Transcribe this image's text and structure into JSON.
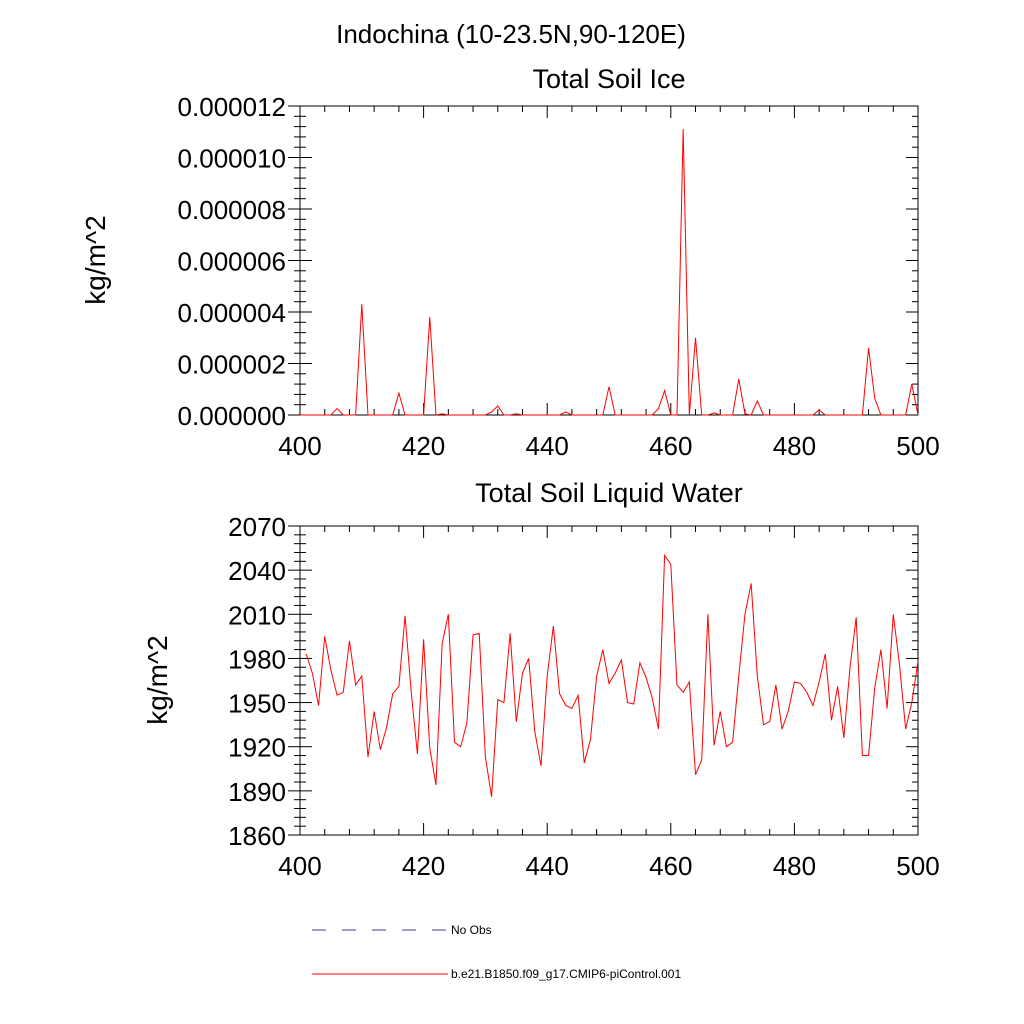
{
  "suptitle": "Indochina (10-23.5N,90-120E)",
  "colors": {
    "model": "#ff0000",
    "obs": "#3a3aa0",
    "axis": "#000000"
  },
  "legend": {
    "obs_label": "No Obs",
    "model_label": "b.e21.B1850.f09_g17.CMIP6-piControl.001"
  },
  "chart_data": [
    {
      "type": "line",
      "title": "Total Soil Ice",
      "xlabel": "",
      "ylabel": "kg/m^2",
      "xlim": [
        400,
        500
      ],
      "ylim": [
        0,
        1.2e-05
      ],
      "xticks": [
        "400",
        "420",
        "440",
        "460",
        "480",
        "500"
      ],
      "yticks": [
        "0.000000",
        "0.000002",
        "0.000004",
        "0.000006",
        "0.000008",
        "0.000010",
        "0.000012"
      ],
      "series": [
        {
          "name": "b.e21.B1850.f09_g17.CMIP6-piControl.001",
          "x": [
            400,
            401,
            402,
            403,
            404,
            405,
            406,
            407,
            408,
            409,
            410,
            411,
            412,
            413,
            414,
            415,
            416,
            417,
            418,
            419,
            420,
            421,
            422,
            423,
            424,
            425,
            426,
            427,
            428,
            429,
            430,
            431,
            432,
            433,
            434,
            435,
            436,
            437,
            438,
            439,
            440,
            441,
            442,
            443,
            444,
            445,
            446,
            447,
            448,
            449,
            450,
            451,
            452,
            453,
            454,
            455,
            456,
            457,
            458,
            459,
            460,
            461,
            462,
            463,
            464,
            465,
            466,
            467,
            468,
            469,
            470,
            471,
            472,
            473,
            474,
            475,
            476,
            477,
            478,
            479,
            480,
            481,
            482,
            483,
            484,
            485,
            486,
            487,
            488,
            489,
            490,
            491,
            492,
            493,
            494,
            495,
            496,
            497,
            498,
            499,
            500
          ],
          "values": [
            0,
            0,
            0,
            0,
            0,
            0,
            2.5e-07,
            0,
            0,
            0,
            4.3e-06,
            0,
            0,
            0,
            0,
            0,
            8.5e-07,
            0,
            0,
            0,
            0,
            3.8e-06,
            0,
            5e-08,
            0,
            0,
            0,
            0,
            0,
            0,
            0,
            1.2e-07,
            3.5e-07,
            0,
            0,
            5e-08,
            0,
            0,
            0,
            0,
            0,
            0,
            0,
            1.2e-07,
            0,
            0,
            0,
            0,
            0,
            0,
            1.1e-06,
            0,
            0,
            0,
            0,
            0,
            0,
            0,
            2.5e-07,
            9.5e-07,
            0,
            0,
            1.11e-05,
            0,
            3e-06,
            0,
            0,
            8e-08,
            0,
            0,
            0,
            1.4e-06,
            5e-08,
            0,
            5.5e-07,
            0,
            0,
            0,
            0,
            0,
            0,
            0,
            0,
            0,
            2e-07,
            0,
            0,
            0,
            0,
            0,
            0,
            0,
            2.6e-06,
            6.5e-07,
            0,
            0,
            0,
            0,
            0,
            1.2e-06,
            0
          ]
        }
      ]
    },
    {
      "type": "line",
      "title": "Total Soil Liquid Water",
      "xlabel": "",
      "ylabel": "kg/m^2",
      "xlim": [
        400,
        500
      ],
      "ylim": [
        1860,
        2070
      ],
      "xticks": [
        "400",
        "420",
        "440",
        "460",
        "480",
        "500"
      ],
      "yticks": [
        "1860",
        "1890",
        "1920",
        "1950",
        "1980",
        "2010",
        "2040",
        "2070"
      ],
      "series": [
        {
          "name": "b.e21.B1850.f09_g17.CMIP6-piControl.001",
          "x": [
            401,
            402,
            403,
            404,
            405,
            406,
            407,
            408,
            409,
            410,
            411,
            412,
            413,
            414,
            415,
            416,
            417,
            418,
            419,
            420,
            421,
            422,
            423,
            424,
            425,
            426,
            427,
            428,
            429,
            430,
            431,
            432,
            433,
            434,
            435,
            436,
            437,
            438,
            439,
            440,
            441,
            442,
            443,
            444,
            445,
            446,
            447,
            448,
            449,
            450,
            451,
            452,
            453,
            454,
            455,
            456,
            457,
            458,
            459,
            460,
            461,
            462,
            463,
            464,
            465,
            466,
            467,
            468,
            469,
            470,
            471,
            472,
            473,
            474,
            475,
            476,
            477,
            478,
            479,
            480,
            481,
            482,
            483,
            484,
            485,
            486,
            487,
            488,
            489,
            490,
            491,
            492,
            493,
            494,
            495,
            496,
            497,
            498,
            499,
            500
          ],
          "values": [
            1983,
            1970,
            1948,
            1995,
            1972,
            1955,
            1957,
            1992,
            1962,
            1968,
            1913,
            1944,
            1918,
            1933,
            1956,
            1961,
            2009,
            1957,
            1915,
            1993,
            1919,
            1894,
            1990,
            2010,
            1923,
            1920,
            1936,
            1996,
            1997,
            1913,
            1886,
            1952,
            1950,
            1997,
            1937,
            1970,
            1980,
            1930,
            1907,
            1968,
            2002,
            1956,
            1948,
            1946,
            1955,
            1909,
            1925,
            1968,
            1986,
            1963,
            1970,
            1979,
            1950,
            1949,
            1977,
            1967,
            1953,
            1932,
            2050,
            2044,
            1962,
            1957,
            1964,
            1901,
            1911,
            2010,
            1921,
            1944,
            1920,
            1923,
            1968,
            2010,
            2031,
            1968,
            1935,
            1937,
            1962,
            1932,
            1944,
            1964,
            1963,
            1957,
            1948,
            1964,
            1983,
            1938,
            1961,
            1926,
            1974,
            2008,
            1914,
            1914,
            1960,
            1986,
            1946,
            2010,
            1976,
            1932,
            1950,
            1978
          ]
        }
      ]
    }
  ]
}
